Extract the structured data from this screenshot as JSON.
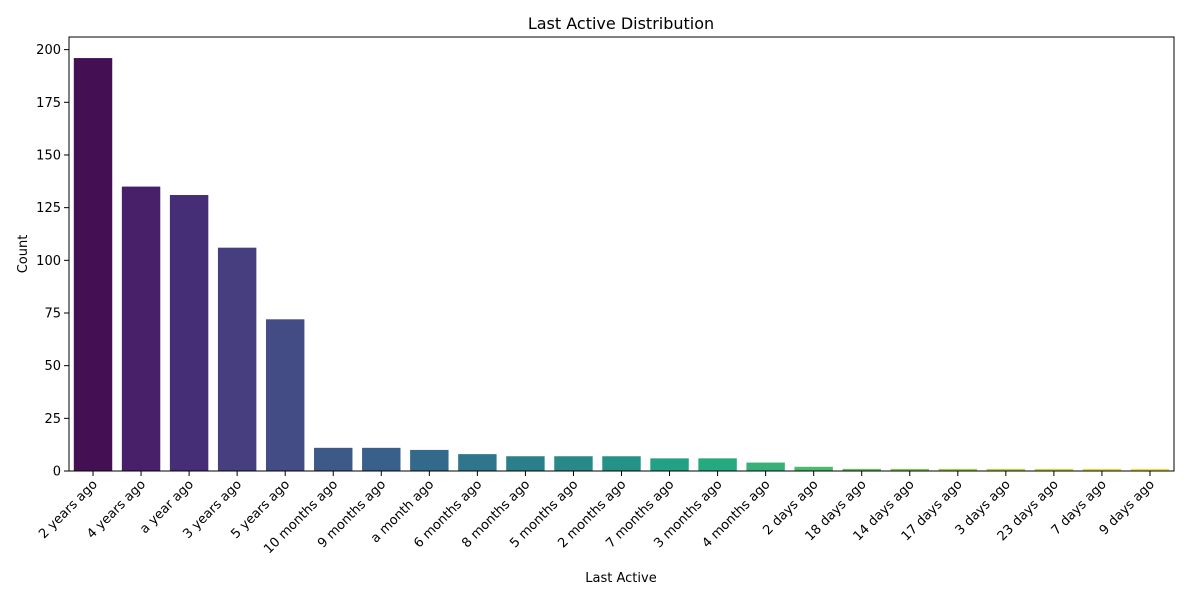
{
  "chart_data": {
    "type": "bar",
    "title": "Last Active Distribution",
    "xlabel": "Last Active",
    "ylabel": "Count",
    "ylim": [
      0,
      206
    ],
    "yticks": [
      0,
      25,
      50,
      75,
      100,
      125,
      150,
      175,
      200
    ],
    "categories": [
      "2 years ago",
      "4 years ago",
      "a year ago",
      "3 years ago",
      "5 years ago",
      "10 months ago",
      "9 months ago",
      "a month ago",
      "6 months ago",
      "8 months ago",
      "5 months ago",
      "2 months ago",
      "7 months ago",
      "3 months ago",
      "4 months ago",
      "2 days ago",
      "18 days ago",
      "14 days ago",
      "17 days ago",
      "3 days ago",
      "23 days ago",
      "7 days ago",
      "9 days ago"
    ],
    "values": [
      196,
      135,
      131,
      106,
      72,
      11,
      11,
      10,
      8,
      7,
      7,
      7,
      6,
      6,
      4,
      2,
      1,
      1,
      1,
      1,
      1,
      1,
      1
    ],
    "colors": [
      "#440f53",
      "#48206a",
      "#462e77",
      "#463e7e",
      "#434c85",
      "#3c5988",
      "#38608b",
      "#336a8c",
      "#2f758b",
      "#2b7f8a",
      "#288988",
      "#249287",
      "#23a184",
      "#25a97f",
      "#37b177",
      "#4bba6c",
      "#65c061",
      "#80c854",
      "#9bce49",
      "#b3d343",
      "#c9d640",
      "#dddb3f",
      "#efdd3e"
    ]
  }
}
